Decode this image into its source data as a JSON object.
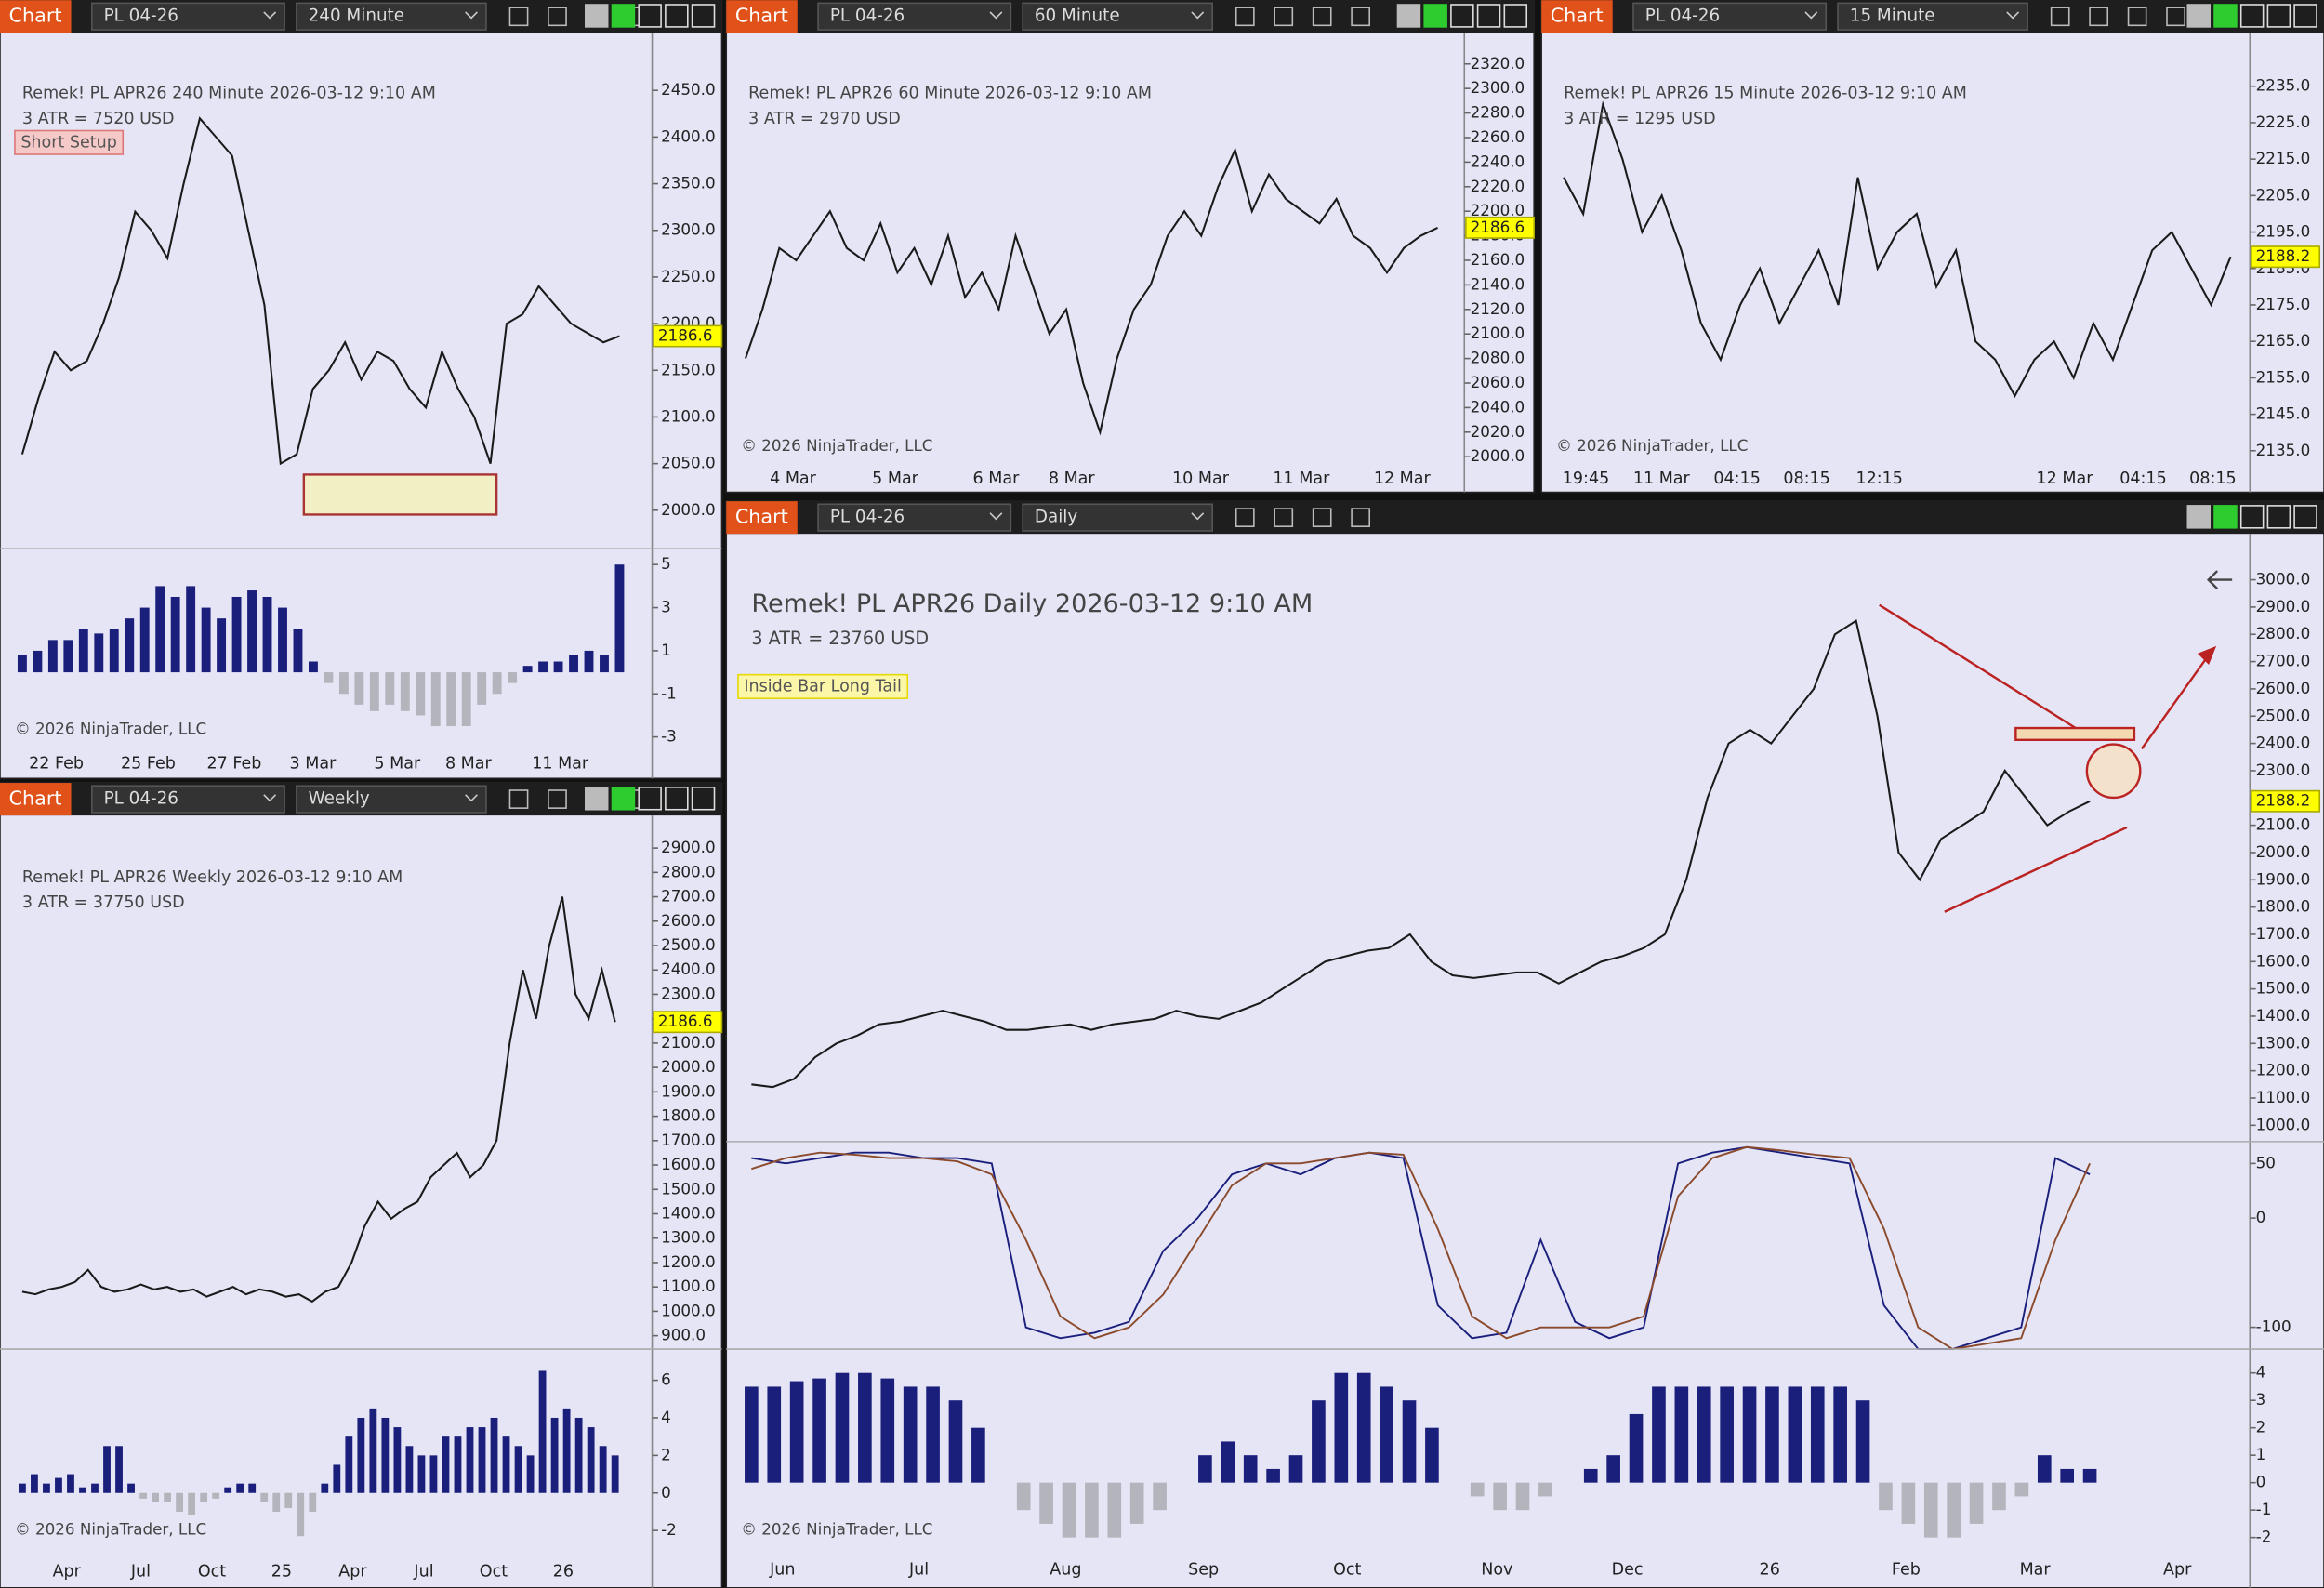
{
  "windows": [
    {
      "toolbar": {
        "label": "Chart",
        "instrument": "PL 04-26",
        "interval": "240 Minute"
      },
      "header": {
        "title": "Remek!  PL APR26  240 Minute  2026-03-12 9:10 AM",
        "atr": "3 ATR = 7520 USD"
      },
      "tag": "Short Setup",
      "copyright": "© 2026 NinjaTrader, LLC",
      "dates": [
        "22 Feb",
        "25 Feb",
        "27 Feb",
        "3 Mar",
        "5 Mar",
        "8 Mar",
        "11 Mar"
      ],
      "price": {
        "ylim": [
          1962,
          2499
        ],
        "last": 2186.6,
        "color": "#1a1a1a",
        "yticks": [
          {
            "value": 2000,
            "label": "2000.0"
          },
          {
            "value": 2050,
            "label": "2050.0"
          },
          {
            "value": 2100,
            "label": "2100.0"
          },
          {
            "value": 2150,
            "label": "2150.0"
          },
          {
            "value": 2200,
            "label": "2200.0"
          },
          {
            "value": 2250,
            "label": "2250.0"
          },
          {
            "value": 2300,
            "label": "2300.0"
          },
          {
            "value": 2350,
            "label": "2350.0"
          },
          {
            "value": 2400,
            "label": "2400.0"
          },
          {
            "value": 2450,
            "label": "2450.0"
          }
        ],
        "closes": [
          2060,
          2120,
          2170,
          2150,
          2160,
          2200,
          2250,
          2320,
          2300,
          2270,
          2350,
          2420,
          2400,
          2380,
          2300,
          2220,
          2050,
          2060,
          2130,
          2150,
          2180,
          2140,
          2170,
          2160,
          2130,
          2110,
          2170,
          2130,
          2100,
          2050,
          2200,
          2210,
          2240,
          2220,
          2200,
          2190,
          2180,
          2186.6
        ]
      },
      "indicator": {
        "ylim": [
          -3.55,
          5.6
        ],
        "yticks": [
          5,
          3,
          1,
          -1,
          -3
        ],
        "colors": [
          "#1b1f7c",
          "#b4b4bc"
        ],
        "values": [
          0.8,
          1,
          1.5,
          1.5,
          2,
          1.8,
          2,
          2.5,
          3,
          4,
          3.5,
          4,
          3,
          2.5,
          3.5,
          3.8,
          3.5,
          3,
          2,
          0.5,
          -0.5,
          -1,
          -1.5,
          -1.8,
          -1.5,
          -1.8,
          -2,
          -2.5,
          -2.5,
          -2.5,
          -1.5,
          -1,
          -0.5,
          0.3,
          0.5,
          0.5,
          0.8,
          1,
          0.8,
          5
        ]
      }
    },
    {
      "toolbar": {
        "label": "Chart",
        "instrument": "PL 04-26",
        "interval": "60 Minute"
      },
      "header": {
        "title": "Remek!  PL APR26  60 Minute  2026-03-12 9:10 AM",
        "atr": "3 ATR = 2970 USD"
      },
      "copyright": "© 2026 NinjaTrader, LLC",
      "dates": [
        "4 Mar",
        "5 Mar",
        "6 Mar",
        "8 Mar",
        "10 Mar",
        "11 Mar",
        "12 Mar"
      ],
      "price": {
        "ylim": [
          1991.5,
          2335.7
        ],
        "last": 2186.6,
        "color": "#1a1a1a",
        "yticks": [
          {
            "value": 2000,
            "label": "2000.0"
          },
          {
            "value": 2020,
            "label": "2020.0"
          },
          {
            "value": 2040,
            "label": "2040.0"
          },
          {
            "value": 2060,
            "label": "2060.0"
          },
          {
            "value": 2080,
            "label": "2080.0"
          },
          {
            "value": 2100,
            "label": "2100.0"
          },
          {
            "value": 2120,
            "label": "2120.0"
          },
          {
            "value": 2140,
            "label": "2140.0"
          },
          {
            "value": 2160,
            "label": "2160.0"
          },
          {
            "value": 2180,
            "label": "2180.0"
          },
          {
            "value": 2200,
            "label": "2200.0"
          },
          {
            "value": 2220,
            "label": "2220.0"
          },
          {
            "value": 2240,
            "label": "2240.0"
          },
          {
            "value": 2260,
            "label": "2260.0"
          },
          {
            "value": 2280,
            "label": "2280.0"
          },
          {
            "value": 2300,
            "label": "2300.0"
          },
          {
            "value": 2320,
            "label": "2320.0"
          }
        ],
        "closes": [
          2080,
          2120,
          2170,
          2160,
          2180,
          2200,
          2170,
          2160,
          2190,
          2150,
          2170,
          2140,
          2180,
          2130,
          2150,
          2120,
          2180,
          2140,
          2100,
          2120,
          2060,
          2020,
          2080,
          2120,
          2140,
          2180,
          2200,
          2180,
          2220,
          2250,
          2200,
          2230,
          2210,
          2200,
          2190,
          2210,
          2180,
          2170,
          2150,
          2170,
          2180,
          2186.6
        ]
      }
    },
    {
      "toolbar": {
        "label": "Chart",
        "instrument": "PL 04-26",
        "interval": "15 Minute"
      },
      "header": {
        "title": "Remek!  PL APR26  15 Minute  2026-03-12 9:10 AM",
        "atr": "3 ATR = 1295 USD"
      },
      "copyright": "© 2026 NinjaTrader, LLC",
      "dates": [
        "19:45",
        "11 Mar",
        "04:15",
        "08:15",
        "12:15",
        "12 Mar",
        "04:15",
        "08:15"
      ],
      "price": {
        "ylim": [
          2130.5,
          2246.4
        ],
        "last": 2188.2,
        "color": "#1a1a1a",
        "yticks": [
          {
            "value": 2135,
            "label": "2135.0"
          },
          {
            "value": 2145,
            "label": "2145.0"
          },
          {
            "value": 2155,
            "label": "2155.0"
          },
          {
            "value": 2165,
            "label": "2165.0"
          },
          {
            "value": 2175,
            "label": "2175.0"
          },
          {
            "value": 2185,
            "label": "2185.0"
          },
          {
            "value": 2195,
            "label": "2195.0"
          },
          {
            "value": 2205,
            "label": "2205.0"
          },
          {
            "value": 2215,
            "label": "2215.0"
          },
          {
            "value": 2225,
            "label": "2225.0"
          },
          {
            "value": 2235,
            "label": "2235.0"
          }
        ],
        "closes": [
          2210,
          2200,
          2230,
          2215,
          2195,
          2205,
          2190,
          2170,
          2160,
          2175,
          2185,
          2170,
          2180,
          2190,
          2175,
          2210,
          2185,
          2195,
          2200,
          2180,
          2190,
          2165,
          2160,
          2150,
          2160,
          2165,
          2155,
          2170,
          2160,
          2175,
          2190,
          2195,
          2185,
          2175,
          2188.2
        ]
      }
    },
    {
      "toolbar": {
        "label": "Chart",
        "instrument": "PL 04-26",
        "interval": "Weekly"
      },
      "header": {
        "title": "Remek!  PL APR26  Weekly  2026-03-12 9:10 AM",
        "atr": "3 ATR = 37750 USD"
      },
      "copyright": "© 2026 NinjaTrader, LLC",
      "dates": [
        "Apr",
        "Jul",
        "Oct",
        "25",
        "Apr",
        "Jul",
        "Oct",
        "26"
      ],
      "price": {
        "ylim": [
          857,
          3003
        ],
        "last": 2186.6,
        "color": "#1a1a1a",
        "yticks": [
          {
            "value": 900,
            "label": "900.0"
          },
          {
            "value": 1000,
            "label": "1000.0"
          },
          {
            "value": 1100,
            "label": "1100.0"
          },
          {
            "value": 1200,
            "label": "1200.0"
          },
          {
            "value": 1300,
            "label": "1300.0"
          },
          {
            "value": 1400,
            "label": "1400.0"
          },
          {
            "value": 1500,
            "label": "1500.0"
          },
          {
            "value": 1600,
            "label": "1600.0"
          },
          {
            "value": 1700,
            "label": "1700.0"
          },
          {
            "value": 1800,
            "label": "1800.0"
          },
          {
            "value": 1900,
            "label": "1900.0"
          },
          {
            "value": 2000,
            "label": "2000.0"
          },
          {
            "value": 2100,
            "label": "2100.0"
          },
          {
            "value": 2200,
            "label": "2200.0"
          },
          {
            "value": 2300,
            "label": "2300.0"
          },
          {
            "value": 2400,
            "label": "2400.0"
          },
          {
            "value": 2500,
            "label": "2500.0"
          },
          {
            "value": 2600,
            "label": "2600.0"
          },
          {
            "value": 2700,
            "label": "2700.0"
          },
          {
            "value": 2800,
            "label": "2800.0"
          },
          {
            "value": 2900,
            "label": "2900.0"
          }
        ],
        "closes": [
          1080,
          1070,
          1090,
          1100,
          1120,
          1170,
          1100,
          1080,
          1090,
          1110,
          1090,
          1100,
          1080,
          1090,
          1060,
          1080,
          1100,
          1070,
          1090,
          1080,
          1060,
          1070,
          1040,
          1080,
          1100,
          1200,
          1350,
          1450,
          1380,
          1420,
          1450,
          1550,
          1600,
          1650,
          1550,
          1600,
          1700,
          2100,
          2400,
          2200,
          2500,
          2700,
          2300,
          2200,
          2400,
          2186.6
        ]
      },
      "indicator": {
        "ylim": [
          -3,
          7.5
        ],
        "yticks": [
          6,
          4,
          2,
          0,
          -2
        ],
        "colors": [
          "#1b1f7c",
          "#b4b4bc"
        ],
        "values": [
          0.5,
          1,
          0.5,
          0.8,
          1,
          0.3,
          0.5,
          2.5,
          2.5,
          0.5,
          -0.3,
          -0.5,
          -0.5,
          -1,
          -1.2,
          -0.5,
          -0.3,
          0.3,
          0.5,
          0.5,
          -0.5,
          -1,
          -0.8,
          -2.3,
          -1,
          0.5,
          1.5,
          3,
          4,
          4.5,
          4,
          3.5,
          2.5,
          2,
          2,
          3,
          3,
          3.5,
          3.5,
          4,
          3,
          2.5,
          2,
          6.5,
          4,
          4.5,
          4,
          3.5,
          2.5,
          2
        ]
      }
    },
    {
      "toolbar": {
        "label": "Chart",
        "instrument": "PL 04-26",
        "interval": "Daily"
      },
      "header": {
        "title": "Remek!  PL APR26  Daily  2026-03-12 9:10 AM",
        "atr": "3 ATR = 23760 USD"
      },
      "tag": "Inside Bar Long Tail",
      "copyright": "© 2026 NinjaTrader, LLC",
      "dates": [
        "Jun",
        "Jul",
        "Aug",
        "Sep",
        "Oct",
        "Nov",
        "Dec",
        "26",
        "Feb",
        "Mar",
        "Apr"
      ],
      "price": {
        "ylim": [
          951,
          3114
        ],
        "last": 2188.2,
        "color": "#1a1a1a",
        "yticks": [
          {
            "value": 1000,
            "label": "1000.0"
          },
          {
            "value": 1100,
            "label": "1100.0"
          },
          {
            "value": 1200,
            "label": "1200.0"
          },
          {
            "value": 1300,
            "label": "1300.0"
          },
          {
            "value": 1400,
            "label": "1400.0"
          },
          {
            "value": 1500,
            "label": "1500.0"
          },
          {
            "value": 1600,
            "label": "1600.0"
          },
          {
            "value": 1700,
            "label": "1700.0"
          },
          {
            "value": 1800,
            "label": "1800.0"
          },
          {
            "value": 1900,
            "label": "1900.0"
          },
          {
            "value": 2000,
            "label": "2000.0"
          },
          {
            "value": 2100,
            "label": "2100.0"
          },
          {
            "value": 2200,
            "label": "2200.0"
          },
          {
            "value": 2300,
            "label": "2300.0"
          },
          {
            "value": 2400,
            "label": "2400.0"
          },
          {
            "value": 2500,
            "label": "2500.0"
          },
          {
            "value": 2600,
            "label": "2600.0"
          },
          {
            "value": 2700,
            "label": "2700.0"
          },
          {
            "value": 2800,
            "label": "2800.0"
          },
          {
            "value": 2900,
            "label": "2900.0"
          },
          {
            "value": 3000,
            "label": "3000.0"
          }
        ],
        "closes": [
          1150,
          1140,
          1170,
          1250,
          1300,
          1330,
          1370,
          1380,
          1400,
          1420,
          1400,
          1380,
          1350,
          1350,
          1360,
          1370,
          1350,
          1370,
          1380,
          1390,
          1420,
          1400,
          1390,
          1420,
          1450,
          1500,
          1550,
          1600,
          1620,
          1640,
          1650,
          1700,
          1600,
          1550,
          1540,
          1550,
          1560,
          1560,
          1520,
          1560,
          1600,
          1620,
          1650,
          1700,
          1900,
          2200,
          2400,
          2450,
          2400,
          2500,
          2600,
          2800,
          2850,
          2500,
          2000,
          1900,
          2050,
          2100,
          2150,
          2300,
          2200,
          2100,
          2150,
          2188.2
        ]
      },
      "oscillator": {
        "ylim": [
          -120,
          70
        ],
        "yticks": [
          50,
          0,
          -100
        ],
        "series": [
          {
            "color": "#1b1f7c",
            "values": [
              55,
              50,
              55,
              60,
              60,
              55,
              55,
              50,
              -100,
              -110,
              -105,
              -95,
              -30,
              0,
              40,
              50,
              40,
              55,
              60,
              55,
              -80,
              -110,
              -105,
              -20,
              -95,
              -110,
              -100,
              50,
              60,
              65,
              60,
              55,
              50,
              -80,
              -120,
              -120,
              -110,
              -100,
              55,
              40
            ]
          },
          {
            "color": "#8b4a2b",
            "values": [
              45,
              55,
              60,
              58,
              55,
              55,
              52,
              40,
              -20,
              -90,
              -110,
              -100,
              -70,
              -20,
              30,
              50,
              50,
              55,
              60,
              58,
              -10,
              -90,
              -110,
              -100,
              -100,
              -100,
              -90,
              20,
              55,
              65,
              62,
              58,
              55,
              -10,
              -100,
              -120,
              -115,
              -110,
              -20,
              50
            ]
          }
        ]
      },
      "indicator": {
        "ylim": [
          -2.43,
          4.76
        ],
        "yticks": [
          4,
          3,
          2,
          1,
          0,
          -1,
          -2
        ],
        "colors": [
          "#1b1f7c",
          "#b4b4bc"
        ],
        "values": [
          3.5,
          3.5,
          3.7,
          3.8,
          4,
          4,
          3.8,
          3.5,
          3.5,
          3,
          2,
          0,
          -1,
          -1.5,
          -2,
          -2,
          -2,
          -1.5,
          -1,
          0,
          1,
          1.5,
          1,
          0.5,
          1,
          3,
          4,
          4,
          3.5,
          3,
          2,
          0,
          -0.5,
          -1,
          -1,
          -0.5,
          0,
          0.5,
          1,
          2.5,
          3.5,
          3.5,
          3.5,
          3.5,
          3.5,
          3.5,
          3.5,
          3.5,
          3.5,
          3,
          -1,
          -1.5,
          -2,
          -2,
          -1.5,
          -1,
          -0.5,
          1,
          0.5,
          0.5
        ]
      }
    }
  ]
}
